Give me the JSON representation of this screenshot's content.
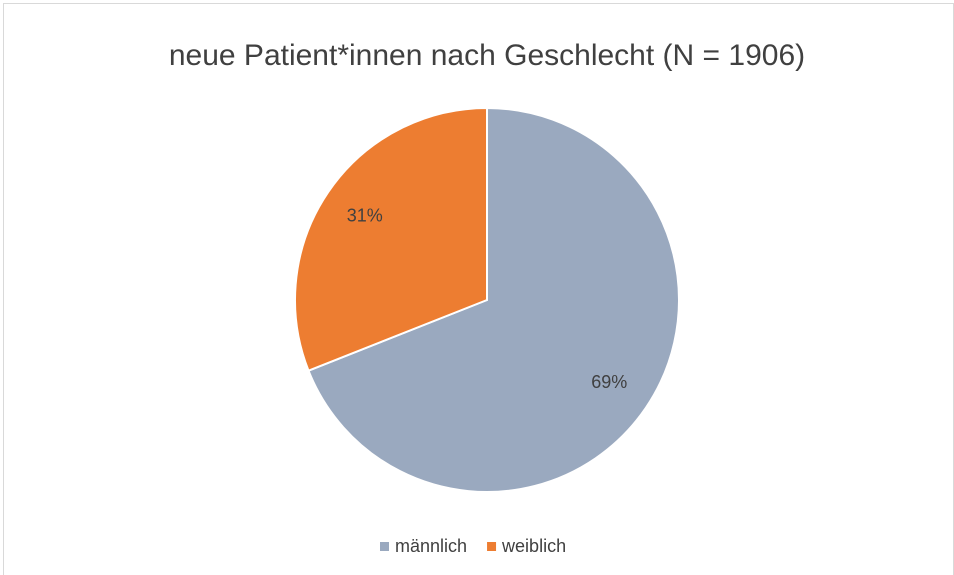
{
  "chart_data": {
    "type": "pie",
    "title": "neue Patient*innen nach Geschlecht (N = 1906)",
    "categories": [
      "männlich",
      "weiblich"
    ],
    "values": [
      69,
      31
    ],
    "value_labels": [
      "69%",
      "31%"
    ],
    "colors": [
      "#9aa9bf",
      "#ed7d31"
    ],
    "legend": "bottom"
  }
}
